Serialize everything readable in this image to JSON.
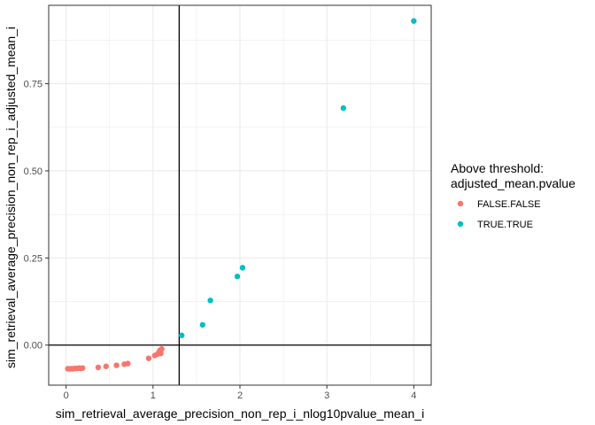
{
  "chart_data": {
    "type": "scatter",
    "xlabel": "sim_retrieval_average_precision_non_rep_i_nlog10pvalue_mean_i",
    "ylabel": "sim_retrieval_average_precision_non_rep_i_adjusted_mean_i",
    "xlim": [
      -0.2,
      4.2
    ],
    "ylim": [
      -0.115,
      0.975
    ],
    "x_ticks": [
      0,
      1,
      2,
      3,
      4
    ],
    "x_tick_labels": [
      "0",
      "1",
      "2",
      "3",
      "4"
    ],
    "y_ticks": [
      0.0,
      0.25,
      0.5,
      0.75
    ],
    "y_tick_labels": [
      "0.00",
      "0.25",
      "0.50",
      "0.75"
    ],
    "reference_lines": {
      "vline_x": 1.301,
      "hline_y": 0.0
    },
    "grid": true,
    "theme": "bw",
    "legend": {
      "title_lines": [
        "Above threshold:",
        "adjusted_mean.pvalue"
      ],
      "position": "right"
    },
    "series": [
      {
        "name": "FALSE.FALSE",
        "color": "#F8766D",
        "points": [
          {
            "x": 0.02,
            "y": -0.068
          },
          {
            "x": 0.04,
            "y": -0.068
          },
          {
            "x": 0.06,
            "y": -0.068
          },
          {
            "x": 0.08,
            "y": -0.068
          },
          {
            "x": 0.1,
            "y": -0.067
          },
          {
            "x": 0.13,
            "y": -0.067
          },
          {
            "x": 0.15,
            "y": -0.066
          },
          {
            "x": 0.17,
            "y": -0.067
          },
          {
            "x": 0.19,
            "y": -0.066
          },
          {
            "x": 0.37,
            "y": -0.064
          },
          {
            "x": 0.46,
            "y": -0.061
          },
          {
            "x": 0.58,
            "y": -0.058
          },
          {
            "x": 0.67,
            "y": -0.055
          },
          {
            "x": 0.71,
            "y": -0.053
          },
          {
            "x": 0.95,
            "y": -0.038
          },
          {
            "x": 1.02,
            "y": -0.03
          },
          {
            "x": 1.05,
            "y": -0.026
          },
          {
            "x": 1.07,
            "y": -0.02
          },
          {
            "x": 1.08,
            "y": -0.015
          },
          {
            "x": 1.09,
            "y": -0.024
          },
          {
            "x": 1.1,
            "y": -0.011
          }
        ]
      },
      {
        "name": "TRUE.TRUE",
        "color": "#00BFC4",
        "points": [
          {
            "x": 1.33,
            "y": 0.028
          },
          {
            "x": 1.57,
            "y": 0.058
          },
          {
            "x": 1.66,
            "y": 0.128
          },
          {
            "x": 1.97,
            "y": 0.197
          },
          {
            "x": 2.03,
            "y": 0.222
          },
          {
            "x": 3.19,
            "y": 0.68
          },
          {
            "x": 4.0,
            "y": 0.93
          }
        ]
      }
    ]
  }
}
